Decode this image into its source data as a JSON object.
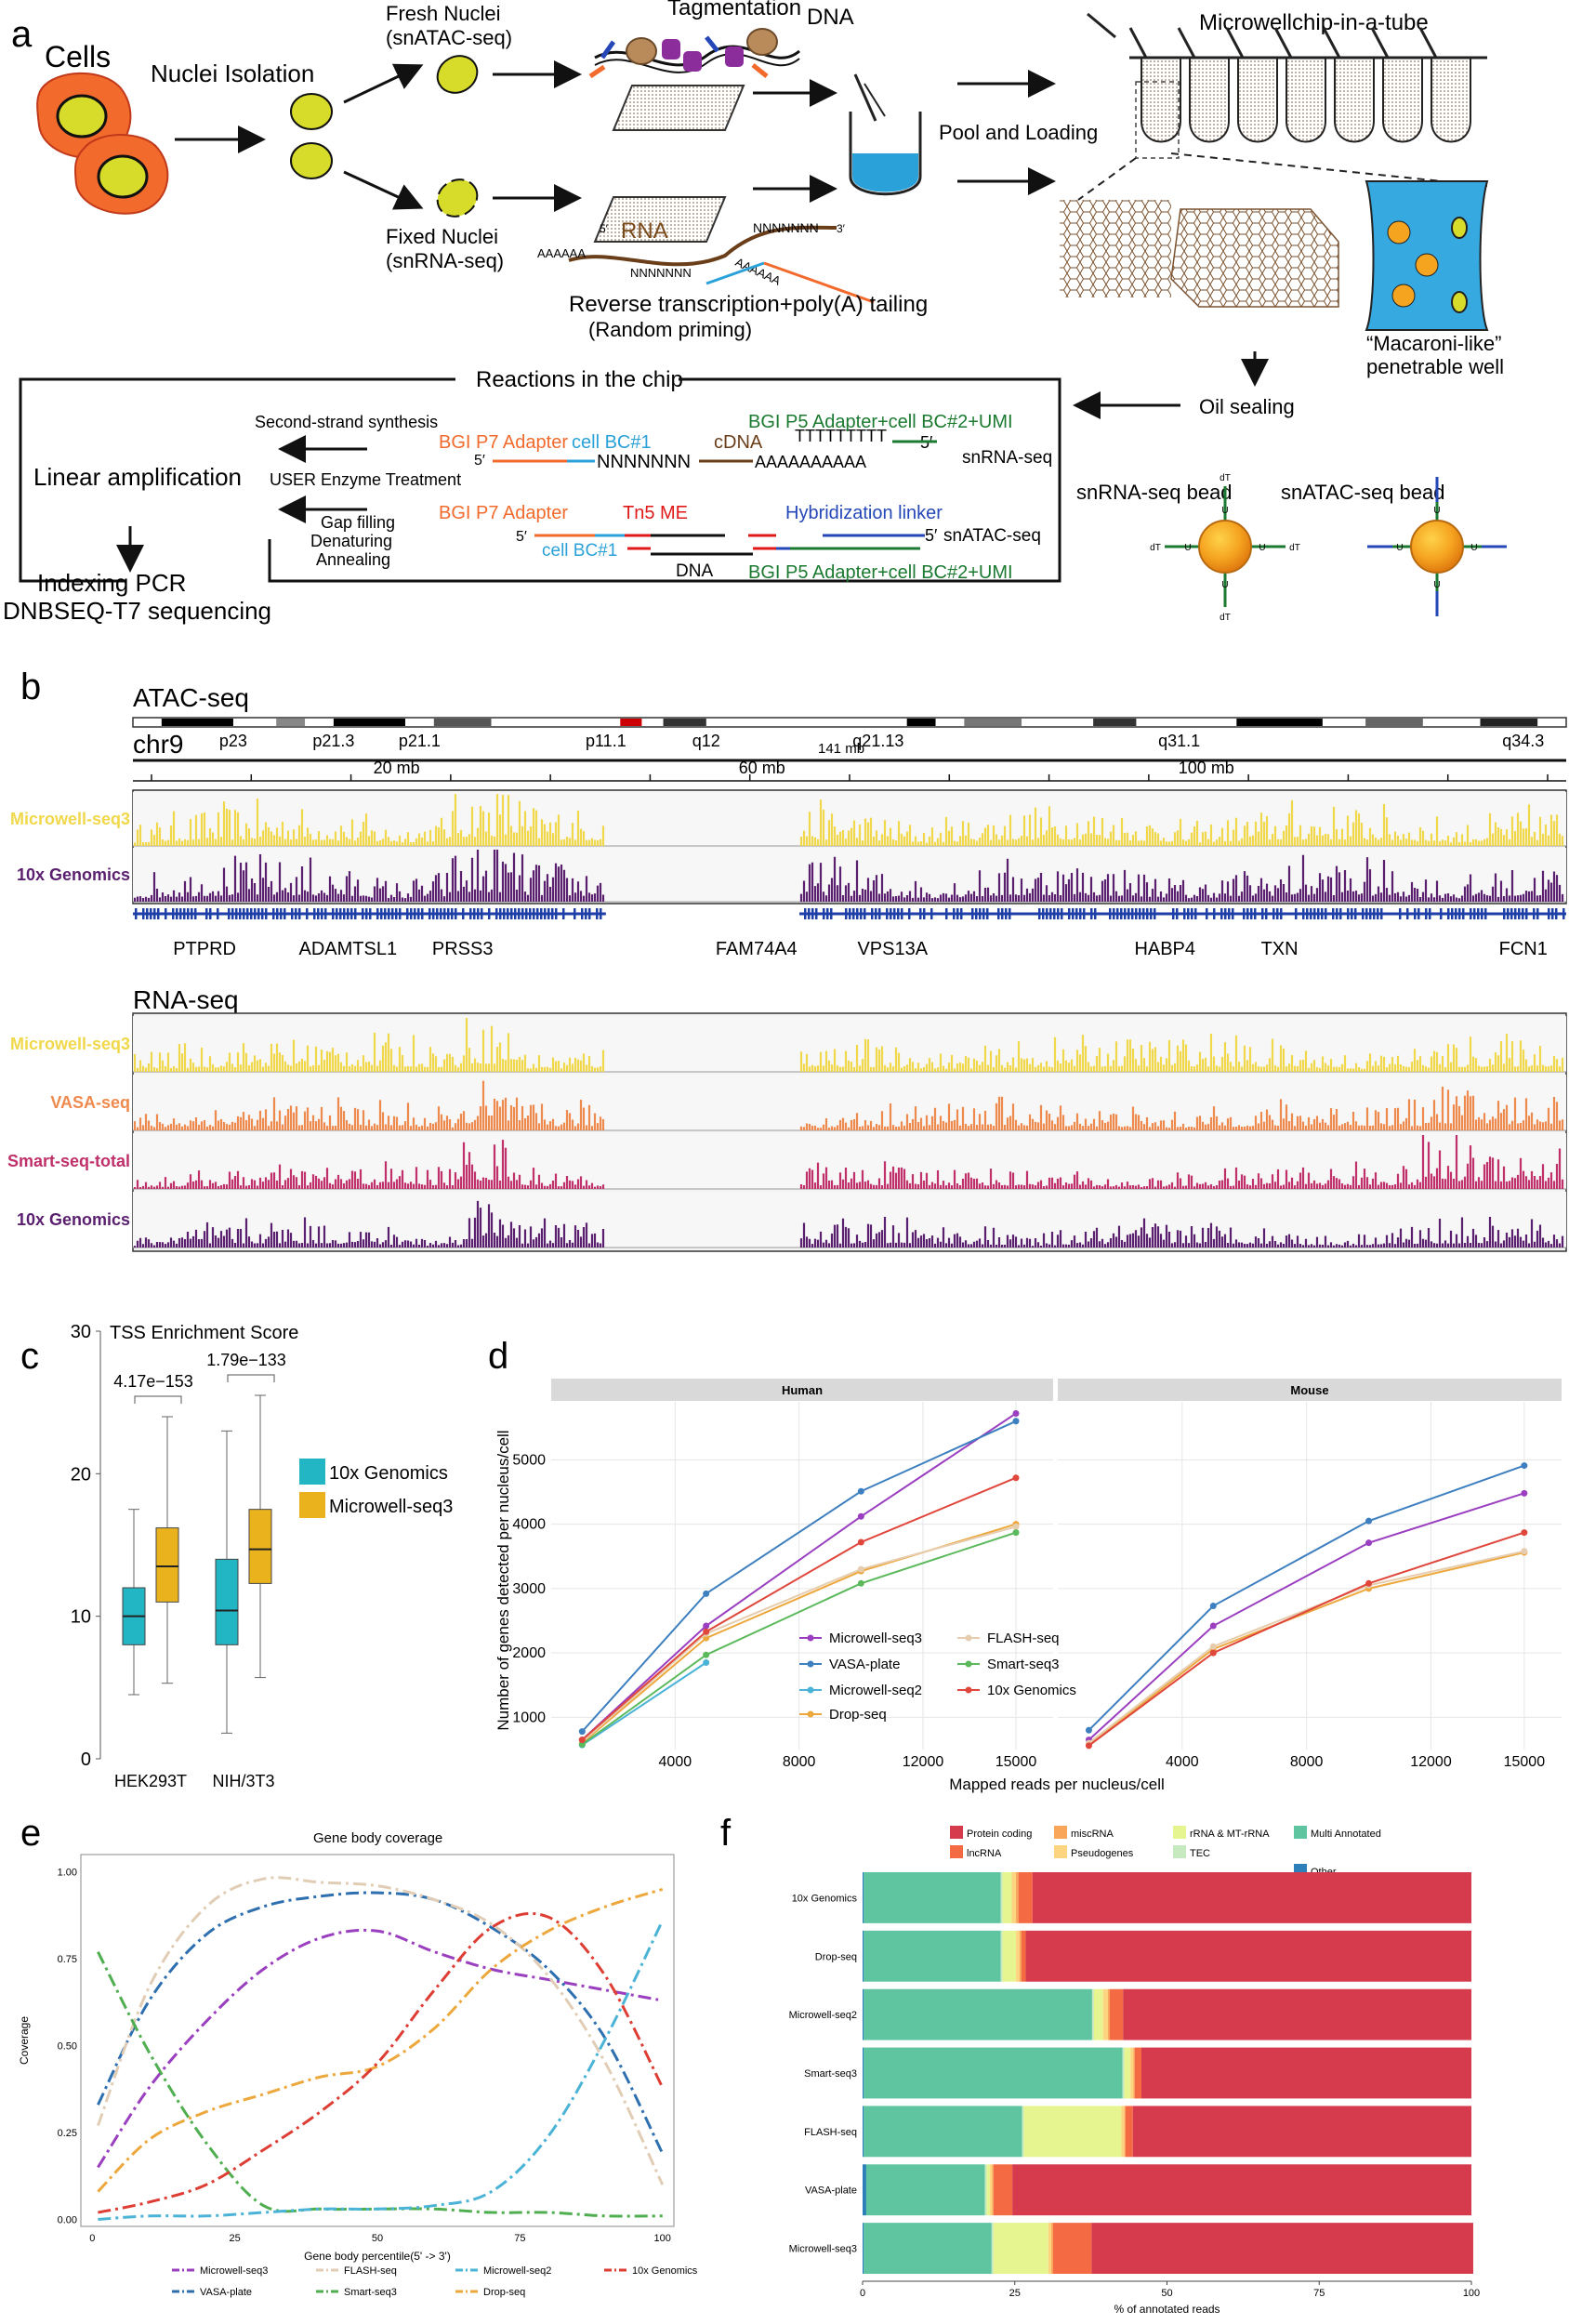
{
  "panel_a": {
    "letter": "a",
    "cells": "Cells",
    "nuclei_isolation": "Nuclei Isolation",
    "fresh_nuclei": "Fresh Nuclei",
    "fresh_nuclei_sub": "(snATAC-seq)",
    "fixed_nuclei": "Fixed Nuclei",
    "fixed_nuclei_sub": "(snRNA-seq)",
    "tagmentation": "Tagmentation",
    "dna": "DNA",
    "rna": "RNA",
    "five_prime": "5′",
    "three_prime": "3′",
    "nnn": "NNNNNNN",
    "aaaaa": "AAAAAA",
    "rt_label": "Reverse transcription+poly(A) tailing",
    "rt_sub": "(Random priming)",
    "pool_loading": "Pool and Loading",
    "chip_title": "Microwellchip-in-a-tube",
    "macaroni_1": "“Macaroni-like”",
    "macaroni_2": "penetrable well",
    "oil_sealing": "Oil sealing",
    "reactions": "Reactions in the chip",
    "second_strand": "Second-strand synthesis",
    "linear_amp": "Linear amplification",
    "user_enzyme": "USER Enzyme Treatment",
    "gap_filling": "Gap filling",
    "denaturing": "Denaturing",
    "annealing": "Annealing",
    "indexing_pcr": "Indexing PCR",
    "dnbseq": "DNBSEQ-T7 sequencing",
    "p7_adapter": "BGI P7 Adapter",
    "cell_bc1": "cell BC#1",
    "cdna": "cDNA",
    "tttt": "TTTTTTTTT",
    "aaaa_long": "AAAAAAAAAA",
    "nnnn_long": "NNNNNNN",
    "p5_adapter": "BGI P5 Adapter+cell BC#2+UMI",
    "snrna_seq": "snRNA-seq",
    "tn5": "Tn5 ME",
    "hyb_linker": "Hybridization linker",
    "snatac_seq": "snATAC-seq",
    "snrna_bead": "snRNA-seq bead",
    "snatac_bead": "snATAC-seq bead",
    "dt": "dT",
    "u": "U"
  },
  "panel_b": {
    "letter": "b",
    "atac_title": "ATAC-seq",
    "rna_title": "RNA-seq",
    "chrom": "chr9",
    "bands": [
      "p23",
      "p21.3",
      "p21.1",
      "p11.1",
      "q12",
      "q21.13",
      "q31.1",
      "q34.3"
    ],
    "span": "141 mb",
    "scale_labels": [
      "20 mb",
      "60 mb",
      "100 mb"
    ],
    "atac_tracks": [
      {
        "name": "Microwell-seq3",
        "color": "#f0d84a"
      },
      {
        "name": "10x Genomics",
        "color": "#5a1f6e"
      }
    ],
    "genes": [
      "PTPRD",
      "ADAMTSL1",
      "PRSS3",
      "FAM74A4",
      "VPS13A",
      "HABP4",
      "TXN",
      "FCN1"
    ],
    "rna_tracks": [
      {
        "name": "Microwell-seq3",
        "color": "#f0d84a"
      },
      {
        "name": "VASA-seq",
        "color": "#ef8a4e"
      },
      {
        "name": "Smart-seq-total",
        "color": "#c0306a"
      },
      {
        "name": "10x Genomics",
        "color": "#5a1f6e"
      }
    ]
  },
  "panel_c": {
    "letter": "c",
    "chart_data": {
      "type": "box",
      "title": "TSS Enrichment Score",
      "categories": [
        "HEK293T",
        "NIH/3T3"
      ],
      "pvalues": [
        "4.17e−153",
        "1.79e−133"
      ],
      "ylim": [
        0,
        30
      ],
      "yticks": [
        0,
        10,
        20,
        30
      ],
      "series": [
        {
          "name": "10x Genomics",
          "color": "#22b5c4",
          "boxes": [
            {
              "min": 4.5,
              "q1": 8.0,
              "median": 10.0,
              "q3": 12.0,
              "max": 17.5
            },
            {
              "min": 1.8,
              "q1": 8.0,
              "median": 10.4,
              "q3": 14.0,
              "max": 23.0
            }
          ]
        },
        {
          "name": "Microwell-seq3",
          "color": "#eab31e",
          "boxes": [
            {
              "min": 5.3,
              "q1": 11.0,
              "median": 13.5,
              "q3": 16.2,
              "max": 24.0
            },
            {
              "min": 5.7,
              "q1": 12.3,
              "median": 14.7,
              "q3": 17.5,
              "max": 25.5
            }
          ]
        }
      ]
    }
  },
  "panel_d": {
    "letter": "d",
    "chart_data": {
      "type": "line",
      "facets": [
        "Human",
        "Mouse"
      ],
      "xlabel": "Mapped reads per nucleus/cell",
      "ylabel": "Number of genes detected per nucleus/cell",
      "xticks": [
        4000,
        8000,
        12000,
        15000
      ],
      "yticks": [
        1000,
        2000,
        3000,
        4000,
        5000
      ],
      "xlim": [
        0,
        16200
      ],
      "ylim": [
        500,
        5900
      ],
      "x": [
        1000,
        5000,
        10000,
        15000
      ],
      "series": [
        {
          "name": "Microwell-seq3",
          "color": "#9a3fbf",
          "human": [
            650,
            2420,
            4120,
            5720
          ],
          "mouse": [
            650,
            2420,
            3710,
            4480
          ]
        },
        {
          "name": "VASA-plate",
          "color": "#3e7fbf",
          "human": [
            780,
            2920,
            4510,
            5600
          ],
          "mouse": [
            800,
            2730,
            4050,
            4910
          ]
        },
        {
          "name": "Microwell-seq2",
          "color": "#4ab3d6",
          "human": [
            570,
            1850,
            null,
            null
          ],
          "mouse": [
            null,
            null,
            null,
            null
          ]
        },
        {
          "name": "Drop-seq",
          "color": "#eda83d",
          "human": [
            600,
            2230,
            3270,
            4000
          ],
          "mouse": [
            570,
            2060,
            3000,
            3560
          ]
        },
        {
          "name": "FLASH-seq",
          "color": "#e6cdb0",
          "human": [
            620,
            2300,
            3300,
            3960
          ],
          "mouse": [
            600,
            2100,
            3050,
            3580
          ]
        },
        {
          "name": "Smart-seq3",
          "color": "#5bb95b",
          "human": [
            580,
            1970,
            3080,
            3870
          ],
          "mouse": [
            null,
            null,
            null,
            null
          ]
        },
        {
          "name": "10x Genomics",
          "color": "#e0473c",
          "human": [
            650,
            2330,
            3720,
            4720
          ],
          "mouse": [
            560,
            2000,
            3080,
            3870
          ]
        }
      ]
    }
  },
  "panel_e": {
    "letter": "e",
    "chart_data": {
      "type": "line",
      "title": "Gene body coverage",
      "xlabel": "Gene body percentile(5' -> 3')",
      "ylabel": "Coverage",
      "xticks": [
        0,
        25,
        50,
        75,
        100
      ],
      "yticks": [
        0.0,
        0.25,
        0.5,
        0.75,
        1.0
      ],
      "ytick_labels": [
        "0.00",
        "0.25",
        "0.50",
        "0.75",
        "1.00"
      ],
      "xlim": [
        -2,
        102
      ],
      "ylim": [
        -0.02,
        1.05
      ],
      "x": [
        1,
        10,
        20,
        30,
        40,
        50,
        60,
        70,
        80,
        90,
        100
      ],
      "series": [
        {
          "name": "Microwell-seq3",
          "color": "#9a3fbf",
          "values": [
            0.15,
            0.38,
            0.57,
            0.72,
            0.81,
            0.83,
            0.77,
            0.72,
            0.69,
            0.66,
            0.63
          ]
        },
        {
          "name": "VASA-plate",
          "color": "#2e6fb0",
          "values": [
            0.33,
            0.63,
            0.82,
            0.9,
            0.93,
            0.94,
            0.92,
            0.84,
            0.72,
            0.52,
            0.19
          ]
        },
        {
          "name": "FLASH-seq",
          "color": "#e1cdb5",
          "values": [
            0.27,
            0.67,
            0.9,
            0.98,
            0.97,
            0.96,
            0.92,
            0.85,
            0.7,
            0.45,
            0.1
          ]
        },
        {
          "name": "Smart-seq3",
          "color": "#4fae4f",
          "values": [
            0.77,
            0.48,
            0.22,
            0.04,
            0.03,
            0.03,
            0.03,
            0.02,
            0.02,
            0.01,
            0.01
          ]
        },
        {
          "name": "Microwell-seq2",
          "color": "#4ab3d6",
          "values": [
            0.0,
            0.01,
            0.01,
            0.02,
            0.03,
            0.03,
            0.04,
            0.08,
            0.24,
            0.52,
            0.86
          ]
        },
        {
          "name": "Drop-seq",
          "color": "#eda83d",
          "values": [
            0.08,
            0.23,
            0.31,
            0.36,
            0.41,
            0.44,
            0.55,
            0.72,
            0.83,
            0.9,
            0.95
          ]
        },
        {
          "name": "10x Genomics",
          "color": "#de3d33",
          "values": [
            0.02,
            0.05,
            0.1,
            0.2,
            0.31,
            0.45,
            0.66,
            0.84,
            0.87,
            0.7,
            0.38
          ]
        }
      ],
      "legend": [
        "Microwell-seq3",
        "FLASH-seq",
        "Microwell-seq2",
        "10x Genomics",
        "VASA-plate",
        "Smart-seq3",
        "Drop-seq"
      ]
    }
  },
  "panel_f": {
    "letter": "f",
    "chart_data": {
      "type": "bar",
      "orientation": "horizontal-stacked",
      "xlabel": "% of annotated reads",
      "xticks": [
        0,
        25,
        50,
        75,
        100
      ],
      "categories": [
        "10x Genomics",
        "Drop-seq",
        "Microwell-seq2",
        "Smart-seq3",
        "FLASH-seq",
        "VASA-plate",
        "Microwell-seq3"
      ],
      "legend_order": [
        "Protein coding",
        "miscRNA",
        "rRNA & MT-rRNA",
        "Multi Annotated",
        "lncRNA",
        "Pseudogenes",
        "TEC",
        "Other"
      ],
      "series": [
        {
          "name": "Other",
          "color": "#2c7fb8",
          "values": [
            0.2,
            0.2,
            0.2,
            0.2,
            0.2,
            0.6,
            0.2
          ]
        },
        {
          "name": "Multi Annotated",
          "color": "#5fc5a0",
          "values": [
            22.5,
            22.5,
            37.5,
            42.5,
            26.0,
            19.5,
            21.0
          ]
        },
        {
          "name": "TEC",
          "color": "#c7e9c0",
          "values": [
            0.3,
            0.3,
            0.3,
            0.3,
            0.3,
            0.3,
            0.3
          ]
        },
        {
          "name": "rRNA & MT-rRNA",
          "color": "#e6f58f",
          "values": [
            1.5,
            2.2,
            1.5,
            1.0,
            16.0,
            0.5,
            9.0
          ]
        },
        {
          "name": "Pseudogenes",
          "color": "#fdd47f",
          "values": [
            0.7,
            0.6,
            0.8,
            0.5,
            0.5,
            0.4,
            0.5
          ]
        },
        {
          "name": "miscRNA",
          "color": "#f9a55a",
          "values": [
            0.4,
            0.3,
            0.3,
            0.2,
            0.2,
            0.2,
            0.3
          ]
        },
        {
          "name": "lncRNA",
          "color": "#f46b43",
          "values": [
            2.3,
            0.7,
            2.2,
            1.1,
            1.2,
            3.1,
            6.3
          ]
        },
        {
          "name": "Protein coding",
          "color": "#d53a4d",
          "values": [
            72.1,
            73.2,
            57.2,
            54.2,
            55.6,
            75.4,
            62.7
          ]
        }
      ]
    }
  }
}
